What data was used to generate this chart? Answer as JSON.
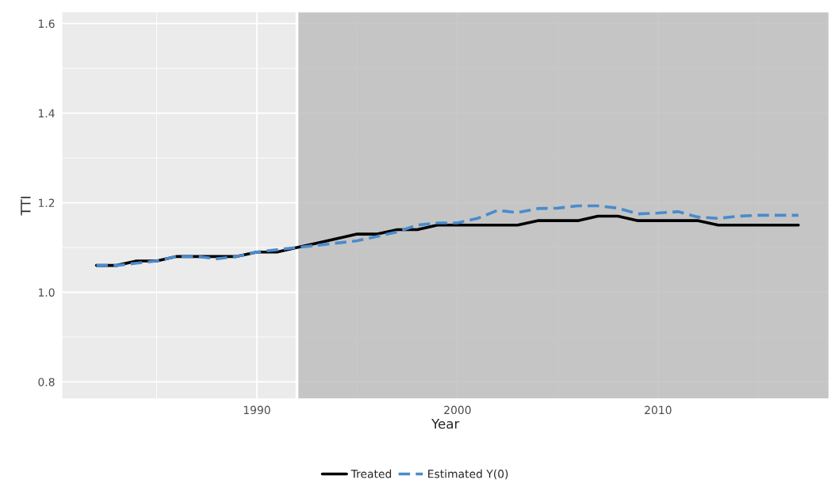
{
  "chart_data": {
    "type": "line",
    "xlabel": "Year",
    "ylabel": "TTI",
    "x": [
      1982,
      1983,
      1984,
      1985,
      1986,
      1987,
      1988,
      1989,
      1990,
      1991,
      1992,
      1993,
      1994,
      1995,
      1996,
      1997,
      1998,
      1999,
      2000,
      2001,
      2002,
      2003,
      2004,
      2005,
      2006,
      2007,
      2008,
      2009,
      2010,
      2011,
      2012,
      2013,
      2014,
      2015,
      2016,
      2017
    ],
    "series": [
      {
        "name": "Treated",
        "color": "#000000",
        "line_style": "solid",
        "values": [
          1.06,
          1.06,
          1.07,
          1.07,
          1.08,
          1.08,
          1.08,
          1.08,
          1.09,
          1.09,
          1.1,
          1.11,
          1.12,
          1.13,
          1.13,
          1.14,
          1.14,
          1.15,
          1.15,
          1.15,
          1.15,
          1.15,
          1.16,
          1.16,
          1.16,
          1.17,
          1.17,
          1.16,
          1.16,
          1.16,
          1.16,
          1.15,
          1.15,
          1.15,
          1.15,
          1.15
        ]
      },
      {
        "name": "Estimated Y(0)",
        "color": "#4a8bcc",
        "line_style": "dashed",
        "values": [
          1.06,
          1.06,
          1.065,
          1.07,
          1.08,
          1.08,
          1.075,
          1.08,
          1.09,
          1.095,
          1.1,
          1.105,
          1.11,
          1.115,
          1.125,
          1.135,
          1.15,
          1.155,
          1.155,
          1.165,
          1.183,
          1.178,
          1.187,
          1.188,
          1.193,
          1.193,
          1.188,
          1.175,
          1.177,
          1.18,
          1.168,
          1.165,
          1.17,
          1.172,
          1.172,
          1.172
        ]
      }
    ],
    "xlim": [
      1980.3,
      2018.5
    ],
    "xticks": [
      1990,
      2000,
      2010
    ],
    "ylim": [
      0.763,
      1.625
    ],
    "yticks": [
      0.8,
      {
        "value": 1.0,
        "label": "1.0"
      },
      1.2,
      1.4,
      1.6
    ],
    "bands": [
      {
        "axis": "x",
        "from": 1992,
        "to": 2018.5,
        "color": "#bebebe"
      }
    ],
    "ref_lines": [
      {
        "axis": "x",
        "value": 1992,
        "color": "#ffffff"
      }
    ],
    "grid": true,
    "legend": "bottom"
  }
}
